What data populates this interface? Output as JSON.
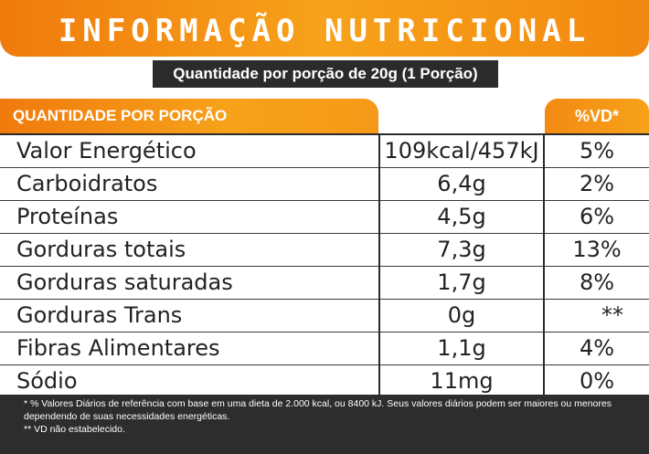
{
  "title": "INFORMAÇÃO NUTRICIONAL",
  "subtitle": "Quantidade por porção de 20g (1 Porção)",
  "table": {
    "header_left": "QUANTIDADE POR PORÇÃO",
    "header_right": "%VD*",
    "rows": [
      {
        "name": "Valor Energético",
        "qty": "109kcal/457kJ",
        "vd": "5%"
      },
      {
        "name": "Carboidratos",
        "qty": "6,4g",
        "vd": "2%"
      },
      {
        "name": "Proteínas",
        "qty": "4,5g",
        "vd": "6%"
      },
      {
        "name": "Gorduras totais",
        "qty": "7,3g",
        "vd": "13%"
      },
      {
        "name": "Gorduras saturadas",
        "qty": "1,7g",
        "vd": "8%"
      },
      {
        "name": "Gorduras Trans",
        "qty": "0g",
        "vd": "**"
      },
      {
        "name": "Fibras Alimentares",
        "qty": "1,1g",
        "vd": "4%"
      },
      {
        "name": "Sódio",
        "qty": "11mg",
        "vd": "0%"
      }
    ]
  },
  "footer": {
    "note1": "* % Valores Diários de referência com base em uma dieta de 2.000 kcal, ou 8400 kJ. Seus valores diários podem ser maiores ou menores dependendo de suas necessidades energéticas.",
    "note2": "** VD não estabelecido."
  },
  "colors": {
    "orange": "#f7a21a",
    "dark": "#2b2b2b"
  }
}
